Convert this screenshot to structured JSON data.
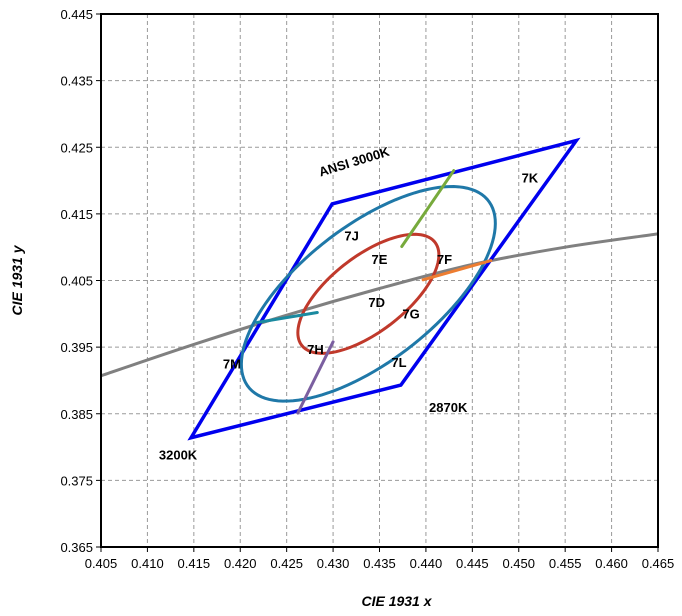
{
  "chart_data": {
    "type": "scatter",
    "title": "",
    "xlabel": "CIE 1931 x",
    "ylabel": "CIE 1931 y",
    "xlim": [
      0.405,
      0.465
    ],
    "ylim": [
      0.365,
      0.445
    ],
    "x_ticks": [
      "0.405",
      "0.410",
      "0.415",
      "0.420",
      "0.425",
      "0.430",
      "0.435",
      "0.440",
      "0.445",
      "0.450",
      "0.455",
      "0.460",
      "0.465"
    ],
    "y_ticks": [
      "0.365",
      "0.375",
      "0.385",
      "0.395",
      "0.405",
      "0.415",
      "0.425",
      "0.435",
      "0.445"
    ],
    "x_tick_values": [
      0.405,
      0.41,
      0.415,
      0.42,
      0.425,
      0.43,
      0.435,
      0.44,
      0.445,
      0.45,
      0.455,
      0.46,
      0.465
    ],
    "y_tick_values": [
      0.365,
      0.375,
      0.385,
      0.395,
      0.405,
      0.415,
      0.425,
      0.435,
      0.445
    ],
    "grid": true,
    "legend": "none",
    "planckian_locus": {
      "color": "#808080",
      "points": [
        [
          0.405,
          0.3907
        ],
        [
          0.415,
          0.3954
        ],
        [
          0.425,
          0.3998
        ],
        [
          0.435,
          0.4038
        ],
        [
          0.445,
          0.4074
        ],
        [
          0.455,
          0.41
        ],
        [
          0.465,
          0.412
        ]
      ]
    },
    "ansi_quadrangle": {
      "color": "#0000ee",
      "points": [
        [
          0.4147,
          0.3814
        ],
        [
          0.4299,
          0.4165
        ],
        [
          0.4562,
          0.426
        ],
        [
          0.4373,
          0.3893
        ]
      ]
    },
    "ellipses": [
      {
        "name": "outer",
        "color": "#1f78a8",
        "cx": 0.4338,
        "cy": 0.403,
        "rx": 0.0193,
        "ry": 0.0086,
        "angle_deg": 52
      },
      {
        "name": "inner",
        "color": "#c0392b",
        "cx": 0.4338,
        "cy": 0.403,
        "rx": 0.0107,
        "ry": 0.0048,
        "angle_deg": 52
      }
    ],
    "segments": [
      {
        "name": "green",
        "color": "#77aa3c",
        "points": [
          [
            0.4374,
            0.4101
          ],
          [
            0.443,
            0.4215
          ]
        ]
      },
      {
        "name": "orange",
        "color": "#ed7d31",
        "points": [
          [
            0.4397,
            0.4051
          ],
          [
            0.447,
            0.408
          ]
        ]
      },
      {
        "name": "teal",
        "color": "#1a8aa0",
        "points": [
          [
            0.4218,
            0.3987
          ],
          [
            0.4283,
            0.4002
          ]
        ]
      },
      {
        "name": "purple",
        "color": "#7b5fa0",
        "points": [
          [
            0.4262,
            0.3851
          ],
          [
            0.43,
            0.3958
          ]
        ]
      }
    ],
    "annotations": [
      {
        "text": "ANSI 3000K",
        "x": 0.4324,
        "y": 0.4222,
        "rotate": -17
      },
      {
        "text": "7K",
        "x": 0.4512,
        "y": 0.4197
      },
      {
        "text": "7J",
        "x": 0.432,
        "y": 0.411
      },
      {
        "text": "7E",
        "x": 0.435,
        "y": 0.4075
      },
      {
        "text": "7F",
        "x": 0.442,
        "y": 0.4075
      },
      {
        "text": "7D",
        "x": 0.4347,
        "y": 0.401
      },
      {
        "text": "7G",
        "x": 0.4384,
        "y": 0.3993
      },
      {
        "text": "7H",
        "x": 0.4281,
        "y": 0.394
      },
      {
        "text": "7L",
        "x": 0.4371,
        "y": 0.392
      },
      {
        "text": "7M",
        "x": 0.4191,
        "y": 0.3918
      },
      {
        "text": "2870K",
        "x": 0.4424,
        "y": 0.3853
      },
      {
        "text": "3200K",
        "x": 0.4133,
        "y": 0.3781
      }
    ]
  }
}
